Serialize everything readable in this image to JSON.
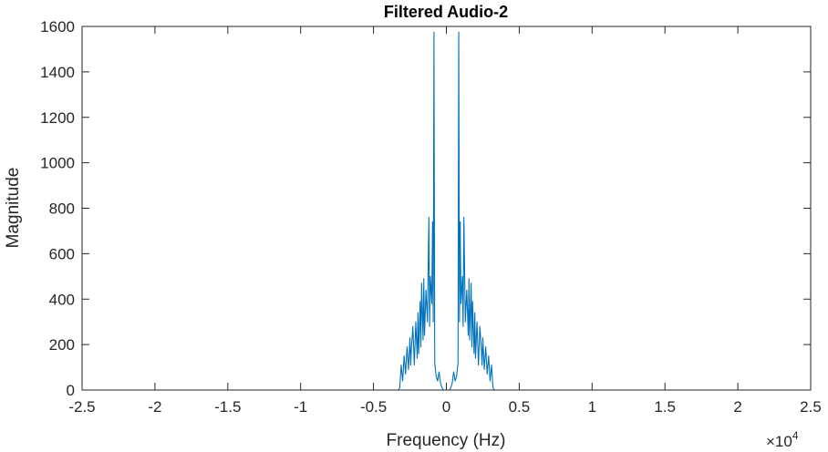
{
  "chart_data": {
    "type": "line",
    "title": "Filtered Audio-2",
    "xlabel": "Frequency (Hz)",
    "ylabel": "Magnitude",
    "x_exponent_label": "×10",
    "x_exponent": "4",
    "x_multiplier": 10000,
    "xlim": [
      -25000,
      25000
    ],
    "ylim": [
      0,
      1600
    ],
    "xticks": [
      -25000,
      -20000,
      -15000,
      -10000,
      -5000,
      0,
      5000,
      10000,
      15000,
      20000,
      25000
    ],
    "xtick_labels": [
      "-2.5",
      "-2",
      "-1.5",
      "-1",
      "-0.5",
      "0",
      "0.5",
      "1",
      "1.5",
      "2",
      "2.5"
    ],
    "yticks": [
      0,
      200,
      400,
      600,
      800,
      1000,
      1200,
      1400,
      1600
    ],
    "ytick_labels": [
      "0",
      "200",
      "400",
      "600",
      "800",
      "1000",
      "1200",
      "1400",
      "1600"
    ],
    "grid": false,
    "box": true,
    "line_color": "#0072BD",
    "series": [
      {
        "x_range": [
          -22050,
          22050
        ],
        "points": [
          [
            -22050,
            0
          ],
          [
            -3300,
            0
          ],
          [
            -3200,
            10
          ],
          [
            -3100,
            110
          ],
          [
            -3000,
            40
          ],
          [
            -2900,
            150
          ],
          [
            -2800,
            70
          ],
          [
            -2700,
            190
          ],
          [
            -2600,
            90
          ],
          [
            -2500,
            230
          ],
          [
            -2450,
            110
          ],
          [
            -2400,
            180
          ],
          [
            -2300,
            280
          ],
          [
            -2200,
            110
          ],
          [
            -2100,
            300
          ],
          [
            -2000,
            140
          ],
          [
            -1950,
            340
          ],
          [
            -1900,
            160
          ],
          [
            -1800,
            390
          ],
          [
            -1750,
            190
          ],
          [
            -1700,
            470
          ],
          [
            -1600,
            220
          ],
          [
            -1550,
            490
          ],
          [
            -1500,
            240
          ],
          [
            -1400,
            440
          ],
          [
            -1300,
            300
          ],
          [
            -1200,
            760
          ],
          [
            -1150,
            280
          ],
          [
            -1100,
            500
          ],
          [
            -1000,
            380
          ],
          [
            -950,
            740
          ],
          [
            -900,
            300
          ],
          [
            -850,
            1575
          ],
          [
            -800,
            120
          ],
          [
            -700,
            60
          ],
          [
            -600,
            40
          ],
          [
            -500,
            80
          ],
          [
            -400,
            30
          ],
          [
            -300,
            10
          ],
          [
            -200,
            0
          ],
          [
            200,
            0
          ],
          [
            300,
            10
          ],
          [
            400,
            30
          ],
          [
            500,
            80
          ],
          [
            600,
            40
          ],
          [
            700,
            60
          ],
          [
            800,
            120
          ],
          [
            850,
            1575
          ],
          [
            900,
            300
          ],
          [
            950,
            740
          ],
          [
            1000,
            380
          ],
          [
            1100,
            500
          ],
          [
            1150,
            280
          ],
          [
            1200,
            760
          ],
          [
            1300,
            300
          ],
          [
            1400,
            440
          ],
          [
            1500,
            240
          ],
          [
            1550,
            490
          ],
          [
            1600,
            220
          ],
          [
            1700,
            470
          ],
          [
            1750,
            190
          ],
          [
            1800,
            390
          ],
          [
            1900,
            160
          ],
          [
            1950,
            340
          ],
          [
            2000,
            140
          ],
          [
            2100,
            300
          ],
          [
            2200,
            110
          ],
          [
            2300,
            280
          ],
          [
            2400,
            180
          ],
          [
            2450,
            110
          ],
          [
            2500,
            230
          ],
          [
            2600,
            90
          ],
          [
            2700,
            190
          ],
          [
            2800,
            70
          ],
          [
            2900,
            150
          ],
          [
            3000,
            40
          ],
          [
            3100,
            110
          ],
          [
            3200,
            10
          ],
          [
            3300,
            0
          ],
          [
            22050,
            0
          ]
        ]
      }
    ]
  }
}
